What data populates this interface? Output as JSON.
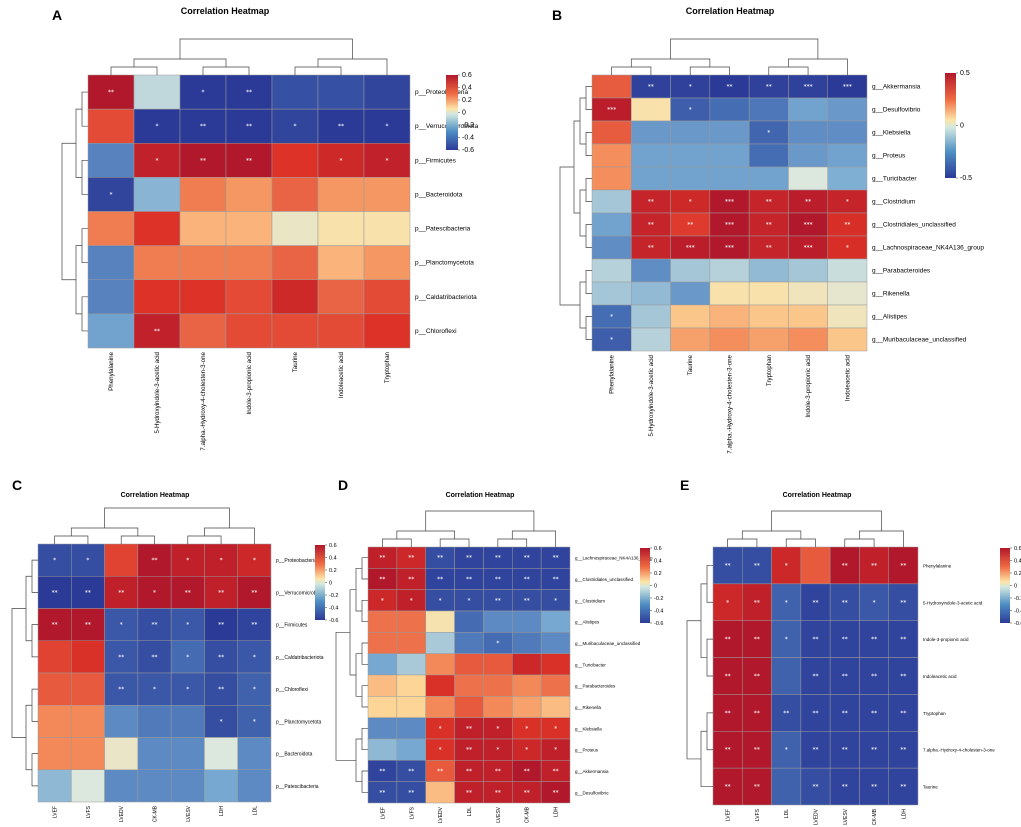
{
  "figure": {
    "legend_ticks": {
      "A": [
        0.6,
        0.4,
        0.2,
        0,
        -0.2,
        -0.4,
        -0.6
      ],
      "B": [
        0.5,
        0,
        -0.5
      ],
      "C": [
        0.6,
        0.4,
        0.2,
        0,
        -0.2,
        -0.4,
        -0.6
      ],
      "D": [
        0.6,
        0.4,
        0.2,
        0,
        -0.2,
        -0.4,
        -0.6
      ],
      "E": [
        0.6,
        0.4,
        0.2,
        0,
        -0.2,
        -0.4,
        -0.6
      ]
    }
  },
  "chart_data": [
    {
      "panel": "A",
      "type": "heatmap",
      "title": "Correlation Heatmap",
      "rows": [
        "p__Proteobacteria",
        "p__Verrucomicrobiota",
        "p__Firmicutes",
        "p__Bacteroidota",
        "p__Patescibacteria",
        "p__Planctomycetota",
        "p__Caldatribacteriota",
        "p__Chloroflexi"
      ],
      "cols": [
        "Phenylalanine",
        "5-Hydroxyindole-3-acetic acid",
        "7.alpha.-Hydroxy-4-cholesten-3-one",
        "Indole-3-propionic acid",
        "Taurine",
        "Indoleacetic acid",
        "Tryptophan"
      ],
      "values": [
        [
          0.65,
          -0.05,
          -0.6,
          -0.6,
          -0.5,
          -0.5,
          -0.55
        ],
        [
          0.4,
          -0.6,
          -0.6,
          -0.6,
          -0.55,
          -0.6,
          -0.6
        ],
        [
          -0.3,
          0.55,
          0.65,
          0.7,
          0.45,
          0.5,
          0.55
        ],
        [
          -0.55,
          -0.15,
          0.3,
          0.25,
          0.35,
          0.25,
          0.25
        ],
        [
          0.3,
          0.45,
          0.2,
          0.2,
          0.05,
          0.1,
          0.1
        ],
        [
          -0.3,
          0.3,
          0.3,
          0.3,
          0.35,
          0.2,
          0.25
        ],
        [
          -0.3,
          0.45,
          0.45,
          0.4,
          0.5,
          0.35,
          0.4
        ],
        [
          -0.2,
          0.55,
          0.35,
          0.4,
          0.4,
          0.4,
          0.45
        ]
      ],
      "stars": [
        [
          "**",
          "",
          "*",
          "**",
          "",
          "",
          ""
        ],
        [
          "",
          "*",
          "**",
          "**",
          "*",
          "**",
          "*"
        ],
        [
          "",
          "*",
          "**",
          "**",
          "",
          "*",
          "*"
        ],
        [
          "*",
          "",
          "",
          "",
          "",
          "",
          ""
        ],
        [
          "",
          "",
          "",
          "",
          "",
          "",
          ""
        ],
        [
          "",
          "",
          "",
          "",
          "",
          "",
          ""
        ],
        [
          "",
          "",
          "",
          "",
          "",
          "",
          ""
        ],
        [
          "",
          "**",
          "",
          "",
          "",
          "",
          ""
        ]
      ],
      "vmin": -0.6,
      "vmax": 0.6
    },
    {
      "panel": "B",
      "type": "heatmap",
      "title": "Correlation Heatmap",
      "rows": [
        "g__Akkermansia",
        "g__Desulfovibrio",
        "g__Klebsiella",
        "g__Proteus",
        "g__Turicibacter",
        "g__Clostridium",
        "g__Clostridiales_unclassified",
        "g__Lachnospiraceae_NK4A136_group",
        "g__Parabacteroides",
        "g__Rikenella",
        "g__Alistipes",
        "g__Muribaculaceae_unclassified"
      ],
      "cols": [
        "Phenylalanine",
        "5-Hydroxyindole-3-acetic acid",
        "Taurine",
        "7.alpha.-Hydroxy-4-cholesten-3-one",
        "Tryptophan",
        "Indole-3-propionic acid",
        "Indoleacetic acid"
      ],
      "values": [
        [
          0.55,
          -0.85,
          -0.85,
          -0.9,
          -0.85,
          -0.85,
          -0.9
        ],
        [
          0.85,
          0.15,
          -0.65,
          -0.55,
          -0.5,
          -0.3,
          -0.35
        ],
        [
          0.55,
          -0.35,
          -0.35,
          -0.35,
          -0.6,
          -0.4,
          -0.4
        ],
        [
          0.4,
          -0.3,
          -0.3,
          -0.3,
          -0.55,
          -0.35,
          -0.3
        ],
        [
          0.4,
          -0.3,
          -0.3,
          -0.3,
          -0.3,
          0.0,
          -0.25
        ],
        [
          -0.15,
          0.8,
          0.75,
          0.9,
          0.8,
          0.85,
          0.8
        ],
        [
          -0.3,
          0.8,
          0.65,
          0.9,
          0.8,
          0.9,
          0.7
        ],
        [
          -0.4,
          0.8,
          0.85,
          0.9,
          0.8,
          0.85,
          0.7
        ],
        [
          -0.1,
          -0.4,
          -0.15,
          -0.1,
          -0.2,
          -0.15,
          -0.05
        ],
        [
          -0.15,
          -0.2,
          -0.35,
          0.15,
          0.15,
          0.1,
          0.05
        ],
        [
          -0.55,
          -0.15,
          0.25,
          0.3,
          0.25,
          0.25,
          0.1
        ],
        [
          -0.65,
          -0.1,
          0.35,
          0.4,
          0.35,
          0.4,
          0.25
        ]
      ],
      "stars": [
        [
          "",
          "**",
          "*",
          "**",
          "**",
          "***",
          "***"
        ],
        [
          "***",
          "",
          "*",
          "",
          "",
          "",
          ""
        ],
        [
          "",
          "",
          "",
          "",
          "*",
          "",
          ""
        ],
        [
          "",
          "",
          "",
          "",
          "",
          "",
          ""
        ],
        [
          "",
          "",
          "",
          "",
          "",
          "",
          ""
        ],
        [
          "",
          "**",
          "*",
          "***",
          "**",
          "**",
          "*"
        ],
        [
          "",
          "**",
          "**",
          "***",
          "**",
          "***",
          "**"
        ],
        [
          "",
          "**",
          "***",
          "***",
          "**",
          "***",
          "*"
        ],
        [
          "",
          "",
          "",
          "",
          "",
          "",
          ""
        ],
        [
          "",
          "",
          "",
          "",
          "",
          "",
          ""
        ],
        [
          "*",
          "",
          "",
          "",
          "",
          "",
          ""
        ],
        [
          "*",
          "",
          "",
          "",
          "",
          "",
          ""
        ]
      ],
      "vmin": -0.7,
      "vmax": 0.9
    },
    {
      "panel": "C",
      "type": "heatmap",
      "title": "Correlation Heatmap",
      "rows": [
        "p__Proteobacteria",
        "p__Verrucomicrobiota",
        "p__Firmicutes",
        "p__Caldatribacteriota",
        "p__Chloroflexi",
        "p__Planctomycetota",
        "p__Bacteroidota",
        "p__Patescibacteria"
      ],
      "cols": [
        "LVEF",
        "LVFS",
        "LVEDV",
        "CK-MB",
        "LVESV",
        "LDH",
        "LDL"
      ],
      "values": [
        [
          -0.55,
          -0.55,
          0.45,
          0.65,
          0.6,
          0.6,
          0.55
        ],
        [
          -0.65,
          -0.65,
          0.6,
          0.65,
          0.65,
          0.6,
          0.65
        ],
        [
          0.65,
          0.65,
          -0.5,
          -0.55,
          -0.5,
          -0.65,
          -0.6
        ],
        [
          0.45,
          0.5,
          -0.5,
          -0.55,
          -0.4,
          -0.55,
          -0.5
        ],
        [
          0.4,
          0.4,
          -0.5,
          -0.5,
          -0.5,
          -0.55,
          -0.45
        ],
        [
          0.3,
          0.3,
          -0.3,
          -0.35,
          -0.35,
          -0.55,
          -0.45
        ],
        [
          0.3,
          0.3,
          0.05,
          -0.3,
          -0.3,
          0.0,
          -0.3
        ],
        [
          -0.15,
          0.0,
          -0.3,
          -0.3,
          -0.3,
          -0.2,
          -0.3
        ]
      ],
      "stars": [
        [
          "*",
          "*",
          "",
          "**",
          "*",
          "*",
          "*"
        ],
        [
          "**",
          "**",
          "**",
          "*",
          "**",
          "**",
          "**"
        ],
        [
          "**",
          "**",
          "*",
          "**",
          "*",
          "**",
          "**"
        ],
        [
          "",
          "",
          "**",
          "**",
          "*",
          "**",
          "*"
        ],
        [
          "",
          "",
          "**",
          "*",
          "*",
          "**",
          "*"
        ],
        [
          "",
          "",
          "",
          "",
          "",
          "*",
          "*"
        ],
        [
          "",
          "",
          "",
          "",
          "",
          "",
          ""
        ],
        [
          "",
          "",
          "",
          "",
          "",
          "",
          ""
        ]
      ],
      "vmin": -0.65,
      "vmax": 0.65
    },
    {
      "panel": "D",
      "type": "heatmap",
      "title": "Correlation Heatmap",
      "rows": [
        "g__Lachnospiraceae_NK4A136_group",
        "g__Clostridiales_unclassified",
        "g__Clostridium",
        "g__Alistipes",
        "g__Muribaculaceae_unclassified",
        "g__Turicibacter",
        "g__Parabacteroides",
        "g__Rikenella",
        "g__Klebsiella",
        "g__Proteus",
        "g__Akkermansia",
        "g__Desulfovibrio"
      ],
      "cols": [
        "LVEF",
        "LVFS",
        "LVEDV",
        "LDL",
        "LVESV",
        "CK-MB",
        "LDH"
      ],
      "values": [
        [
          0.6,
          0.55,
          -0.55,
          -0.6,
          -0.6,
          -0.6,
          -0.6
        ],
        [
          0.65,
          0.6,
          -0.6,
          -0.6,
          -0.6,
          -0.6,
          -0.6
        ],
        [
          0.55,
          0.6,
          -0.55,
          -0.55,
          -0.55,
          -0.55,
          -0.55
        ],
        [
          0.35,
          0.35,
          0.1,
          -0.4,
          -0.3,
          -0.3,
          -0.2
        ],
        [
          0.35,
          0.35,
          -0.1,
          -0.35,
          -0.4,
          -0.35,
          -0.3
        ],
        [
          -0.2,
          -0.1,
          0.3,
          0.4,
          0.4,
          0.55,
          0.5
        ],
        [
          0.2,
          0.15,
          0.5,
          0.35,
          0.35,
          0.3,
          0.35
        ],
        [
          0.15,
          0.15,
          0.3,
          0.4,
          0.3,
          0.25,
          0.2
        ],
        [
          -0.3,
          -0.3,
          0.5,
          0.6,
          0.6,
          0.5,
          0.5
        ],
        [
          -0.15,
          -0.2,
          0.5,
          0.6,
          0.6,
          0.55,
          0.6
        ],
        [
          -0.6,
          -0.55,
          0.4,
          0.6,
          0.6,
          0.65,
          0.6
        ],
        [
          -0.55,
          -0.55,
          0.2,
          0.6,
          0.6,
          0.6,
          0.65
        ]
      ],
      "stars": [
        [
          "**",
          "**",
          "**",
          "**",
          "**",
          "**",
          "**"
        ],
        [
          "**",
          "**",
          "**",
          "**",
          "**",
          "**",
          "**"
        ],
        [
          "*",
          "*",
          "*",
          "*",
          "**",
          "**",
          "*"
        ],
        [
          "",
          "",
          "",
          "",
          "",
          "",
          ""
        ],
        [
          "",
          "",
          "",
          "",
          "*",
          "",
          ""
        ],
        [
          "",
          "",
          "",
          "",
          "",
          "",
          ""
        ],
        [
          "",
          "",
          "",
          "",
          "",
          "",
          ""
        ],
        [
          "",
          "",
          "",
          "",
          "",
          "",
          ""
        ],
        [
          "",
          "",
          "*",
          "**",
          "*",
          "*",
          "*"
        ],
        [
          "",
          "",
          "*",
          "**",
          "*",
          "*",
          "*"
        ],
        [
          "**",
          "**",
          "**",
          "**",
          "**",
          "**",
          "**"
        ],
        [
          "**",
          "**",
          "",
          "**",
          "**",
          "**",
          "**"
        ]
      ],
      "vmin": -0.65,
      "vmax": 0.65
    },
    {
      "panel": "E",
      "type": "heatmap",
      "title": "Correlation Heatmap",
      "rows": [
        "Phenylalanine",
        "5-Hydroxyindole-3-acetic acid",
        "Indole-3-propionic acid",
        "Indoleacetic acid",
        "Tryptophan",
        "7.alpha.-Hydroxy-4-cholesten-3-one",
        "Taurine"
      ],
      "cols": [
        "LVEF",
        "LVFS",
        "LDL",
        "LVEDV",
        "LVESV",
        "CK-MB",
        "LDH"
      ],
      "values": [
        [
          -0.55,
          -0.55,
          0.55,
          0.4,
          0.65,
          0.6,
          0.65
        ],
        [
          0.55,
          0.6,
          -0.45,
          -0.6,
          -0.55,
          -0.5,
          -0.55
        ],
        [
          0.65,
          0.65,
          -0.45,
          -0.6,
          -0.6,
          -0.6,
          -0.6
        ],
        [
          0.65,
          0.65,
          -0.45,
          -0.6,
          -0.6,
          -0.6,
          -0.6
        ],
        [
          0.65,
          0.65,
          -0.55,
          -0.6,
          -0.6,
          -0.6,
          -0.6
        ],
        [
          0.65,
          0.65,
          -0.45,
          -0.6,
          -0.6,
          -0.6,
          -0.6
        ],
        [
          0.65,
          0.65,
          -0.45,
          -0.55,
          -0.6,
          -0.6,
          -0.6
        ]
      ],
      "stars": [
        [
          "**",
          "**",
          "*",
          "",
          "**",
          "**",
          "**"
        ],
        [
          "*",
          "**",
          "*",
          "**",
          "**",
          "*",
          "**"
        ],
        [
          "**",
          "**",
          "*",
          "**",
          "**",
          "**",
          "**"
        ],
        [
          "**",
          "**",
          "",
          "**",
          "**",
          "**",
          "**"
        ],
        [
          "**",
          "**",
          "**",
          "**",
          "**",
          "**",
          "**"
        ],
        [
          "**",
          "**",
          "*",
          "**",
          "**",
          "**",
          "**"
        ],
        [
          "**",
          "**",
          "",
          "**",
          "**",
          "**",
          "**"
        ]
      ],
      "vmin": -0.65,
      "vmax": 0.65
    }
  ]
}
